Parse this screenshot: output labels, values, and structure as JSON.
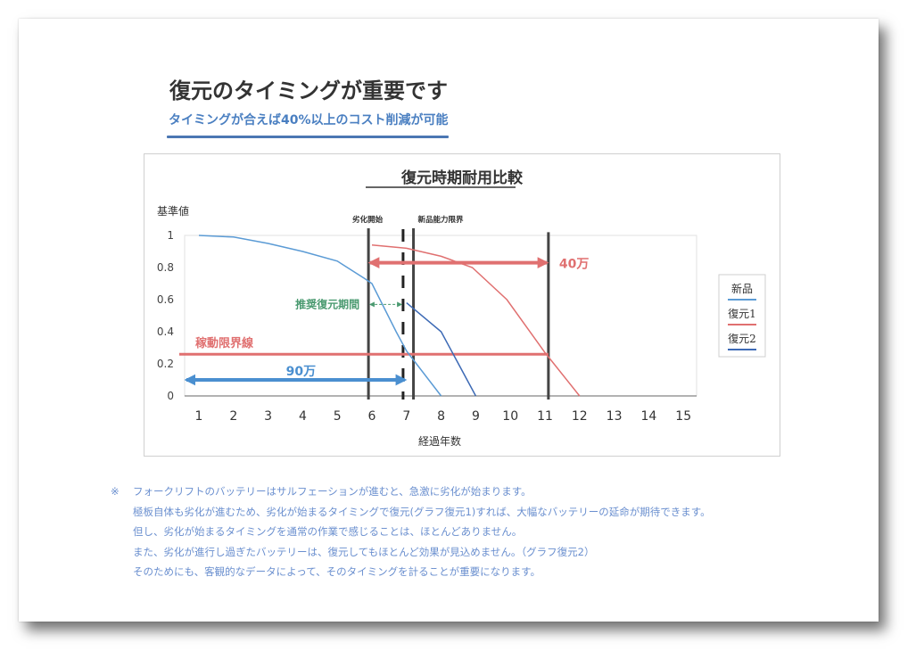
{
  "header": {
    "title": "復元のタイミングが重要です",
    "subtitle": "タイミングが合えば40%以上のコスト削減が可能"
  },
  "chart_data": {
    "type": "line",
    "title": "復元時期耐用比較",
    "ylabel": "基準値",
    "xlabel": "経過年数",
    "ylim": [
      0,
      1
    ],
    "xlim": [
      1,
      15
    ],
    "y_ticks": [
      "1",
      "0.8",
      "0.6",
      "0.4",
      "0.2",
      "0"
    ],
    "x_ticks": [
      "1",
      "2",
      "3",
      "4",
      "5",
      "6",
      "7",
      "8",
      "9",
      "10",
      "11",
      "12",
      "13",
      "14",
      "15"
    ],
    "grid": false,
    "legend_position": "right",
    "series": [
      {
        "name": "新品",
        "color": "#5b9bd5",
        "points": [
          [
            1,
            1.0
          ],
          [
            2,
            0.99
          ],
          [
            3,
            0.95
          ],
          [
            4,
            0.9
          ],
          [
            5,
            0.84
          ],
          [
            5.8,
            0.73
          ],
          [
            6,
            0.7
          ],
          [
            6.7,
            0.4
          ],
          [
            7,
            0.28
          ],
          [
            8,
            0.0
          ]
        ]
      },
      {
        "name": "復元1",
        "color": "#e07070",
        "points": [
          [
            6,
            0.94
          ],
          [
            7,
            0.92
          ],
          [
            8,
            0.87
          ],
          [
            8.9,
            0.8
          ],
          [
            9.9,
            0.6
          ],
          [
            11,
            0.27
          ],
          [
            12,
            0.0
          ]
        ]
      },
      {
        "name": "復元2",
        "color": "#3d6ab5",
        "points": [
          [
            7,
            0.58
          ],
          [
            8,
            0.4
          ],
          [
            9,
            0.0
          ]
        ]
      }
    ],
    "reference_lines": [
      {
        "type": "vertical",
        "x": 5.9,
        "label": "劣化開始",
        "style": "solid",
        "color": "#444444"
      },
      {
        "type": "vertical",
        "x": 6.9,
        "label": "",
        "style": "dashed",
        "color": "#222222"
      },
      {
        "type": "vertical",
        "x": 7.2,
        "label": "新品能力限界",
        "style": "solid",
        "color": "#444444"
      },
      {
        "type": "vertical",
        "x": 11.1,
        "label": "",
        "style": "solid",
        "color": "#444444"
      },
      {
        "type": "horizontal",
        "y": 0.26,
        "label": "稼動限界線",
        "style": "solid",
        "color": "#e07070"
      }
    ],
    "annotations": [
      {
        "text": "40万",
        "color": "#e07070",
        "arrow_from_x": 5.9,
        "arrow_to_x": 11.1,
        "y": 0.83,
        "double_headed": true
      },
      {
        "text": "90万",
        "color": "#4a8fd0",
        "arrow_from_x": 0.6,
        "arrow_to_x": 7.0,
        "y": 0.1,
        "double_headed": true
      },
      {
        "text": "推奨復元期間",
        "color": "#4a9a70",
        "arrow_from_x": 5.9,
        "arrow_to_x": 6.9,
        "y": 0.57,
        "double_headed": true
      }
    ]
  },
  "legend": {
    "items": [
      {
        "label": "新品",
        "color": "#5b9bd5"
      },
      {
        "label": "復元1",
        "color": "#e07070"
      },
      {
        "label": "復元2",
        "color": "#3d6ab5"
      }
    ]
  },
  "notes": {
    "mark": "※",
    "lines": [
      "フォークリフトのバッテリーはサルフェーションが進むと、急激に劣化が始まります。",
      "極板自体も劣化が進むため、劣化が始まるタイミングで復元(グラフ復元1)すれば、大幅なバッテリーの延命が期待できます。",
      "但し、劣化が始まるタイミングを通常の作業で感じることは、ほとんどありません。",
      "また、劣化が進行し過ぎたバッテリーは、復元してもほとんど効果が見込めません。（グラフ復元2）",
      "そのためにも、客観的なデータによって、そのタイミングを計ることが重要になります。"
    ]
  }
}
